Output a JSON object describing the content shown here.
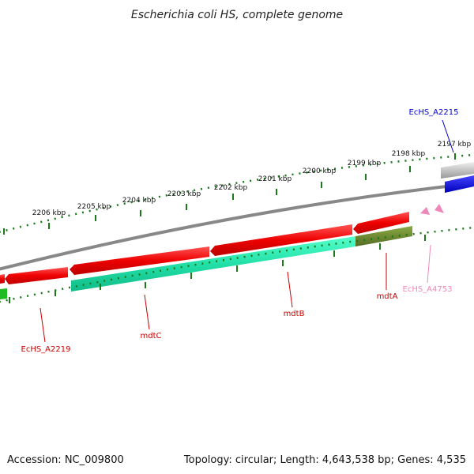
{
  "title": "Escherichia coli HS, complete genome",
  "footer": {
    "accession": "Accession: NC_009800",
    "summary": "Topology: circular; Length: 4,643,538 bp; Genes: 4,535"
  },
  "tick_labels": [
    "2206 kbp",
    "2205 kbp",
    "2204 kbp",
    "2203 kbp",
    "2202 kbp",
    "2201 kbp",
    "2200 kbp",
    "2199 kbp",
    "2198 kbp",
    "2197 kbp"
  ],
  "genes": [
    {
      "name": "EcHS_A2215",
      "color": "#0000cc"
    },
    {
      "name": "EcHS_A4753",
      "color": "#ee88bb"
    },
    {
      "name": "mdtA",
      "color": "#cc0000"
    },
    {
      "name": "mdtB",
      "color": "#cc0000"
    },
    {
      "name": "mdtC",
      "color": "#cc0000"
    },
    {
      "name": "EcHS_A2219",
      "color": "#cc0000"
    }
  ],
  "colors": {
    "gene_forward": "#ee1111",
    "gene_other": "#22ddaa",
    "olive_feature": "#6b8e23",
    "tick": "#1a7a1a",
    "backbone": "#888888"
  }
}
